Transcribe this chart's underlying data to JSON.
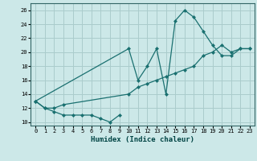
{
  "title": "",
  "xlabel": "Humidex (Indice chaleur)",
  "bg_color": "#cce8e8",
  "grid_color": "#aacccc",
  "line_color": "#1a7070",
  "xlim": [
    -0.5,
    23.5
  ],
  "ylim": [
    9.5,
    27
  ],
  "xticks": [
    0,
    1,
    2,
    3,
    4,
    5,
    6,
    7,
    8,
    9,
    10,
    11,
    12,
    13,
    14,
    15,
    16,
    17,
    18,
    19,
    20,
    21,
    22,
    23
  ],
  "yticks": [
    10,
    12,
    14,
    16,
    18,
    20,
    22,
    24,
    26
  ],
  "series1_x": [
    0,
    1,
    2,
    3,
    4,
    5,
    6,
    7,
    8,
    9
  ],
  "series1_y": [
    13,
    12,
    11.5,
    11,
    11,
    11,
    11,
    10.5,
    10,
    11
  ],
  "series2_x": [
    0,
    10,
    11,
    12,
    13,
    14,
    15,
    16,
    17,
    18,
    19,
    20,
    21,
    22,
    23
  ],
  "series2_y": [
    13,
    20.5,
    16.0,
    18.0,
    20.5,
    14.0,
    24.5,
    26.0,
    25.0,
    23.0,
    21.0,
    19.5,
    19.5,
    20.5,
    20.5
  ],
  "series3_x": [
    0,
    1,
    2,
    3,
    10,
    11,
    12,
    13,
    14,
    15,
    16,
    17,
    18,
    19,
    20,
    21,
    22,
    23
  ],
  "series3_y": [
    13,
    12,
    12,
    12.5,
    14.0,
    15.0,
    15.5,
    16.0,
    16.5,
    17.0,
    17.5,
    18.0,
    19.5,
    20.0,
    21.0,
    20.0,
    20.5,
    20.5
  ]
}
